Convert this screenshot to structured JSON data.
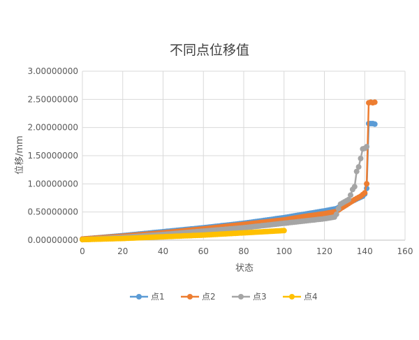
{
  "chart_data": {
    "type": "line",
    "title": "不同点位移值",
    "xlabel": "状态",
    "ylabel": "位移/mm",
    "xlim": [
      0,
      160
    ],
    "ylim": [
      0,
      3
    ],
    "x_ticks": [
      "0",
      "20",
      "40",
      "60",
      "80",
      "100",
      "120",
      "140",
      "160"
    ],
    "y_ticks": [
      "0.00000000",
      "0.50000000",
      "1.00000000",
      "1.50000000",
      "2.00000000",
      "2.50000000",
      "3.00000000"
    ],
    "grid": true,
    "legend_position": "bottom",
    "series": [
      {
        "name": "点1",
        "color": "#5B9BD5",
        "points": [
          [
            0,
            0.02
          ],
          [
            20,
            0.08
          ],
          [
            40,
            0.15
          ],
          [
            60,
            0.22
          ],
          [
            80,
            0.3
          ],
          [
            100,
            0.4
          ],
          [
            110,
            0.46
          ],
          [
            120,
            0.52
          ],
          [
            126,
            0.56
          ],
          [
            128,
            0.6
          ],
          [
            132,
            0.66
          ],
          [
            136,
            0.73
          ],
          [
            139,
            0.78
          ],
          [
            140,
            0.82
          ],
          [
            141,
            0.92
          ],
          [
            142,
            2.07
          ],
          [
            143,
            2.07
          ],
          [
            144,
            2.07
          ],
          [
            145,
            2.06
          ]
        ]
      },
      {
        "name": "点2",
        "color": "#ED7D31",
        "points": [
          [
            0,
            0.02
          ],
          [
            20,
            0.07
          ],
          [
            40,
            0.13
          ],
          [
            60,
            0.2
          ],
          [
            80,
            0.28
          ],
          [
            100,
            0.36
          ],
          [
            110,
            0.42
          ],
          [
            120,
            0.47
          ],
          [
            126,
            0.51
          ],
          [
            128,
            0.56
          ],
          [
            132,
            0.65
          ],
          [
            135,
            0.72
          ],
          [
            138,
            0.78
          ],
          [
            140,
            0.84
          ],
          [
            141,
            1.0
          ],
          [
            142,
            2.44
          ],
          [
            143,
            2.45
          ],
          [
            144,
            2.44
          ],
          [
            145,
            2.45
          ]
        ]
      },
      {
        "name": "点3",
        "color": "#A5A5A5",
        "points": [
          [
            0,
            0.01
          ],
          [
            20,
            0.05
          ],
          [
            40,
            0.1
          ],
          [
            60,
            0.16
          ],
          [
            80,
            0.22
          ],
          [
            100,
            0.3
          ],
          [
            110,
            0.34
          ],
          [
            120,
            0.38
          ],
          [
            125,
            0.41
          ],
          [
            126,
            0.46
          ],
          [
            127,
            0.56
          ],
          [
            128,
            0.64
          ],
          [
            130,
            0.68
          ],
          [
            132,
            0.72
          ],
          [
            133,
            0.8
          ],
          [
            134,
            0.9
          ],
          [
            135,
            0.95
          ],
          [
            136,
            1.22
          ],
          [
            137,
            1.3
          ],
          [
            138,
            1.45
          ],
          [
            139,
            1.62
          ],
          [
            140,
            1.63
          ],
          [
            141,
            1.66
          ]
        ]
      },
      {
        "name": "点4",
        "color": "#FFC000",
        "points": [
          [
            0,
            0.01
          ],
          [
            20,
            0.03
          ],
          [
            40,
            0.06
          ],
          [
            60,
            0.09
          ],
          [
            80,
            0.13
          ],
          [
            100,
            0.17
          ]
        ]
      }
    ]
  }
}
